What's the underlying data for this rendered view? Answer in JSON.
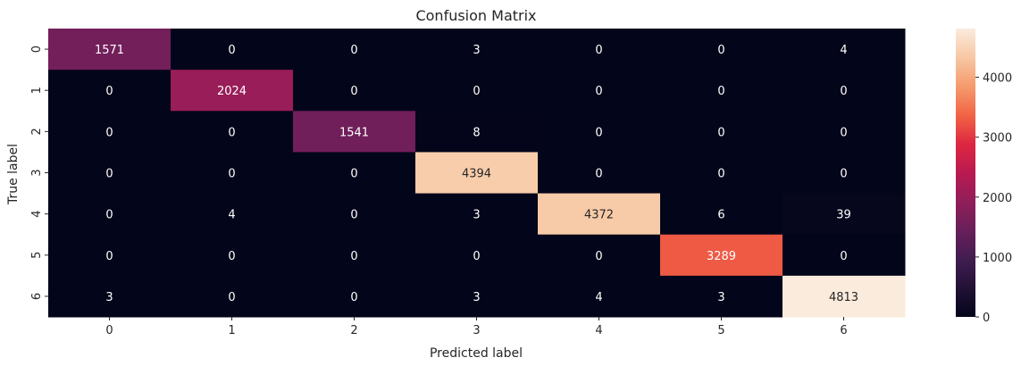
{
  "chart_data": {
    "type": "heatmap",
    "title": "Confusion Matrix",
    "xlabel": "Predicted label",
    "ylabel": "True label",
    "x_categories": [
      "0",
      "1",
      "2",
      "3",
      "4",
      "5",
      "6"
    ],
    "y_categories": [
      "0",
      "1",
      "2",
      "3",
      "4",
      "5",
      "6"
    ],
    "values": [
      [
        1571,
        0,
        0,
        3,
        0,
        0,
        4
      ],
      [
        0,
        2024,
        0,
        0,
        0,
        0,
        0
      ],
      [
        0,
        0,
        1541,
        8,
        0,
        0,
        0
      ],
      [
        0,
        0,
        0,
        4394,
        0,
        0,
        0
      ],
      [
        0,
        4,
        0,
        3,
        4372,
        6,
        39
      ],
      [
        0,
        0,
        0,
        0,
        0,
        3289,
        0
      ],
      [
        3,
        0,
        0,
        3,
        4,
        3,
        4813
      ]
    ],
    "colorbar": {
      "min": 0,
      "max": 4813,
      "ticks": [
        0,
        1000,
        2000,
        3000,
        4000
      ]
    },
    "colormap": "rocket"
  }
}
